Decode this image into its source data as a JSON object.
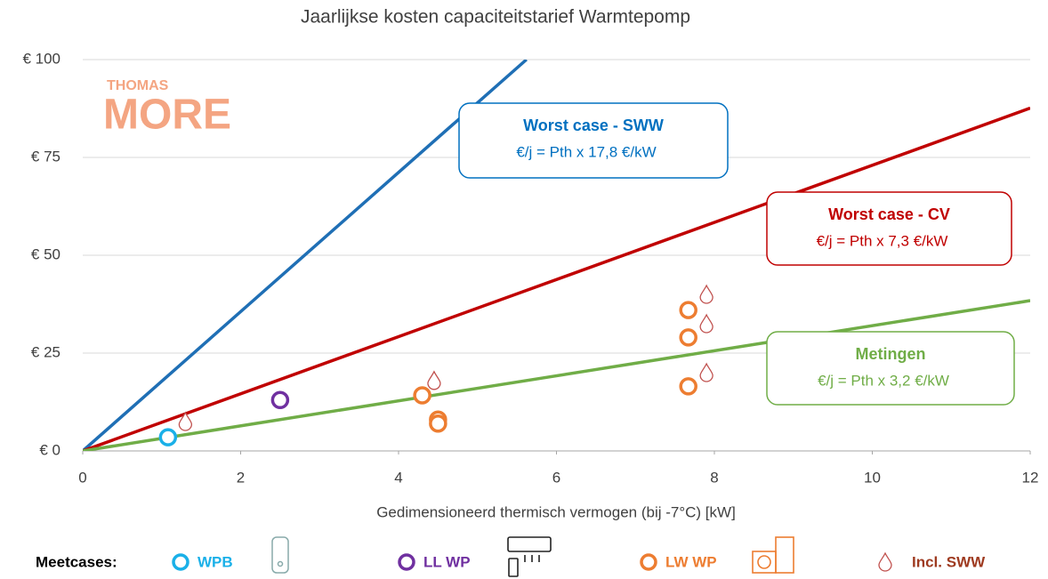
{
  "chart_data": {
    "type": "scatter",
    "title": "Jaarlijkse kosten capaciteitstarief Warmtepomp",
    "xlabel": "Gedimensioneerd thermisch vermogen (bij -7°C) [kW]",
    "logo": [
      "THOMAS",
      "MORE"
    ],
    "xlim": [
      0,
      12
    ],
    "ylim": [
      0,
      100
    ],
    "xticks": [
      0,
      2,
      4,
      6,
      8,
      10,
      12
    ],
    "yticks": [
      {
        "value": 0,
        "label": "€ 0"
      },
      {
        "value": 25,
        "label": "€ 25"
      },
      {
        "value": 50,
        "label": "€ 50"
      },
      {
        "value": 75,
        "label": "€ 75"
      },
      {
        "value": 100,
        "label": "€ 100"
      }
    ],
    "grid": true,
    "lines": [
      {
        "color": "#1f6fb5",
        "x": [
          0,
          5.62
        ],
        "values": [
          0,
          100
        ]
      },
      {
        "color": "#c00000",
        "x": [
          0,
          12
        ],
        "values": [
          0,
          87.6
        ]
      },
      {
        "color": "#70ad47",
        "x": [
          0,
          12
        ],
        "values": [
          0,
          38.4
        ]
      }
    ],
    "annotations": [
      {
        "title": "Worst case  - SWW",
        "text": "€/j = Pth x 17,8 €/kW",
        "color": "#0070c0"
      },
      {
        "title": "Worst case  - CV",
        "text": "€/j = Pth x 7,3 €/kW",
        "color": "#c00000"
      },
      {
        "title": "Metingen",
        "text": "€/j = Pth x 3,2 €/kW",
        "color": "#70ad47"
      }
    ],
    "legend_title": "Meetcases:",
    "series": [
      {
        "name": "WPB",
        "color": "#1ab0e8",
        "marker": "circle",
        "x": [
          1.08
        ],
        "values": [
          3.5
        ]
      },
      {
        "name": "LL WP",
        "color": "#7030a0",
        "marker": "circle",
        "x": [
          2.5
        ],
        "values": [
          13
        ]
      },
      {
        "name": "LW WP",
        "color": "#ed7d31",
        "marker": "circle",
        "x": [
          4.3,
          4.5,
          4.5,
          7.67,
          7.67,
          7.67
        ],
        "values": [
          14.2,
          8,
          7,
          36,
          29,
          16.5
        ]
      },
      {
        "name": "Incl. SWW",
        "color": "#c0504d",
        "marker": "drop",
        "x": [
          1.3,
          4.45,
          7.9,
          7.9,
          7.9
        ],
        "values": [
          7.5,
          18,
          40,
          32.5,
          20
        ]
      }
    ]
  }
}
